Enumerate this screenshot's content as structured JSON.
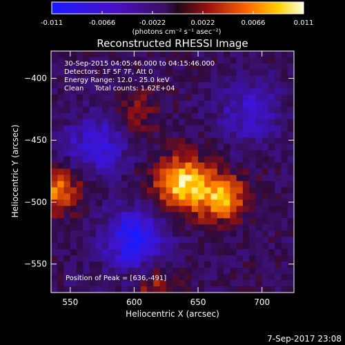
{
  "chart_data": {
    "type": "heatmap",
    "title": "Reconstructed RHESSI Image",
    "xlabel": "Heliocentric X (arcsec)",
    "ylabel": "Heliocentric Y (arcsec)",
    "xlim": [
      535,
      725
    ],
    "ylim": [
      -573,
      -378
    ],
    "xticks": [
      550,
      600,
      650,
      700
    ],
    "yticks": [
      -400,
      -450,
      -500,
      -550
    ],
    "colorbar": {
      "ticks": [
        "-0.011",
        "-0.0066",
        "-0.0022",
        "0.0022",
        "0.0066",
        "0.011"
      ],
      "unit_label": "(photons cm⁻² s⁻¹ asec⁻²)",
      "range": [
        -0.011,
        0.011
      ]
    },
    "annotations": [
      "30-Sep-2015 04:05:46.000 to 04:15:46.000",
      "Detectors: 1F 5F 7F, Att 0",
      "Energy Range: 12.0 - 25.0 keV",
      "Clean     Total counts: 1.62E+04"
    ],
    "peak_label": "Position of Peak = [636,-491]",
    "peak": [
      636,
      -491
    ],
    "sources": [
      {
        "x": 636,
        "y": -483,
        "value": 0.011
      },
      {
        "x": 668,
        "y": -495,
        "value": 0.0085
      },
      {
        "x": 537,
        "y": -487,
        "value": 0.0075
      },
      {
        "x": 598,
        "y": -425,
        "value": 0.0035
      },
      {
        "x": 615,
        "y": -565,
        "value": 0.004
      }
    ],
    "negative_regions": [
      {
        "x": 598,
        "y": -528,
        "value": -0.009
      },
      {
        "x": 568,
        "y": -452,
        "value": -0.006
      },
      {
        "x": 688,
        "y": -425,
        "value": -0.005
      }
    ]
  },
  "footer": {
    "timestamp": "7-Sep-2017 23:08"
  }
}
